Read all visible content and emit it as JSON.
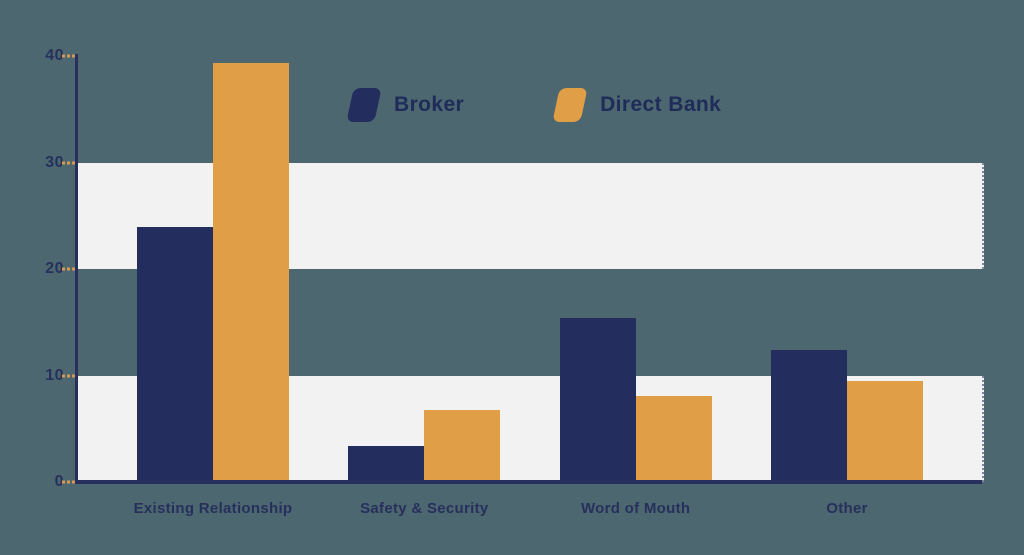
{
  "background_color": "#4c676f",
  "band_color": "#f2f2f3",
  "chart_data": {
    "type": "bar",
    "title": "",
    "categories": [
      "Existing Relationship",
      "Safety & Security",
      "Word of Mouth",
      "Other"
    ],
    "series": [
      {
        "name": "Broker",
        "color": "#232e5e",
        "values": [
          23.9,
          3.4,
          15.4,
          12.4
        ]
      },
      {
        "name": "Direct Bank",
        "color": "#e09e46",
        "values": [
          39.3,
          6.8,
          8.1,
          9.5
        ]
      }
    ],
    "xlabel": "",
    "ylabel": "",
    "ylim": [
      0,
      40
    ],
    "yticks": [
      0,
      10,
      20,
      30,
      40
    ],
    "grid": "alternating horizontal white bands between ticks (0-10 and 20-30 white)",
    "legend_position": "top-center",
    "axis_color": "#27305c",
    "tick_dash_color": "#d99a4f"
  },
  "legend": {
    "items": [
      {
        "label": "Broker",
        "swatch": "navy-parallelogram-swatch"
      },
      {
        "label": "Direct Bank",
        "swatch": "orange-parallelogram-swatch"
      }
    ]
  }
}
